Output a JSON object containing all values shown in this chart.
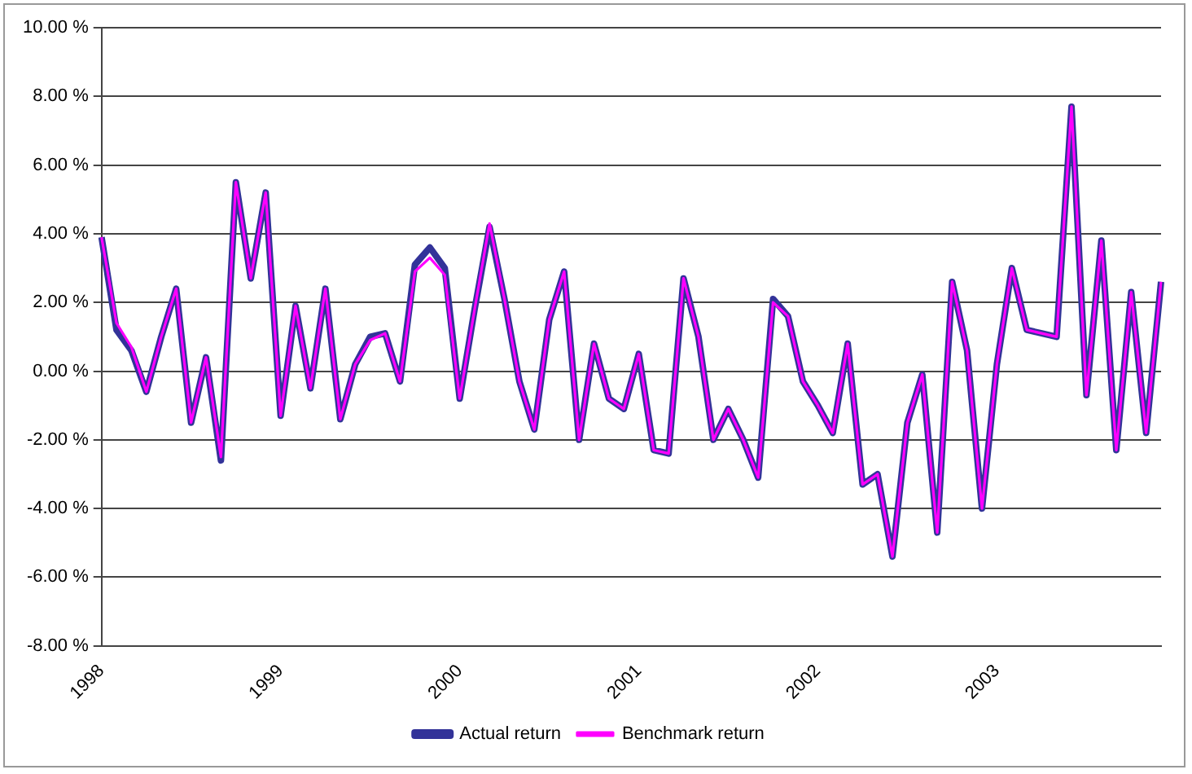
{
  "chart_data": {
    "type": "line",
    "categories": [
      "1998",
      null,
      null,
      null,
      null,
      null,
      null,
      null,
      null,
      null,
      null,
      null,
      "1999",
      null,
      null,
      null,
      null,
      null,
      null,
      null,
      null,
      null,
      null,
      null,
      "2000",
      null,
      null,
      null,
      null,
      null,
      null,
      null,
      null,
      null,
      null,
      null,
      "2001",
      null,
      null,
      null,
      null,
      null,
      null,
      null,
      null,
      null,
      null,
      null,
      "2002",
      null,
      null,
      null,
      null,
      null,
      null,
      null,
      null,
      null,
      null,
      null,
      "2003",
      null,
      null,
      null,
      null,
      null,
      null,
      null,
      null,
      null,
      null,
      null
    ],
    "series": [
      {
        "name": "Actual return",
        "color": "#333399",
        "values": [
          3.9,
          1.2,
          0.6,
          -0.6,
          1.0,
          2.4,
          -1.5,
          0.4,
          -2.6,
          5.5,
          2.7,
          5.2,
          -1.3,
          1.9,
          -0.5,
          2.4,
          -1.4,
          0.2,
          1.0,
          1.1,
          -0.3,
          3.1,
          3.6,
          3.0,
          -0.8,
          1.8,
          4.2,
          2.1,
          -0.3,
          -1.7,
          1.5,
          2.9,
          -2.0,
          0.8,
          -0.8,
          -1.1,
          0.5,
          -2.3,
          -2.4,
          2.7,
          1.0,
          -2.0,
          -1.1,
          -2.0,
          -3.1,
          2.1,
          1.6,
          -0.3,
          -1.0,
          -1.8,
          0.8,
          -3.3,
          -3.0,
          -5.4,
          -1.5,
          -0.1,
          -4.7,
          2.6,
          0.6,
          -4.0,
          0.2,
          3.0,
          1.2,
          1.1,
          1.0,
          7.7,
          -0.7,
          3.8,
          -2.3,
          2.3,
          -1.8,
          2.6
        ]
      },
      {
        "name": "Benchmark return",
        "color": "#ff00ff",
        "values": [
          3.9,
          1.4,
          0.7,
          -0.6,
          1.0,
          2.4,
          -1.5,
          0.4,
          -2.5,
          5.5,
          2.7,
          5.2,
          -1.3,
          1.9,
          -0.5,
          2.4,
          -1.4,
          0.2,
          0.9,
          1.1,
          -0.3,
          2.9,
          3.3,
          2.8,
          -0.8,
          1.8,
          4.3,
          2.1,
          -0.3,
          -1.7,
          1.5,
          2.9,
          -2.0,
          0.8,
          -0.8,
          -1.1,
          0.5,
          -2.3,
          -2.4,
          2.7,
          1.0,
          -2.0,
          -1.1,
          -2.0,
          -3.1,
          2.0,
          1.6,
          -0.3,
          -1.0,
          -1.8,
          0.8,
          -3.3,
          -3.0,
          -5.4,
          -1.5,
          -0.1,
          -4.7,
          2.6,
          0.6,
          -4.0,
          0.2,
          3.0,
          1.2,
          1.1,
          1.0,
          7.7,
          -0.7,
          3.8,
          -2.3,
          2.3,
          -1.8,
          2.6
        ]
      }
    ],
    "ylim": [
      -8,
      10
    ],
    "yticks": [
      {
        "value": -8,
        "label": "-8.00 %"
      },
      {
        "value": -6,
        "label": "-6.00 %"
      },
      {
        "value": -4,
        "label": "-4.00 %"
      },
      {
        "value": -2,
        "label": "-2.00 %"
      },
      {
        "value": 0,
        "label": "0.00 %"
      },
      {
        "value": 2,
        "label": "2.00 %"
      },
      {
        "value": 4,
        "label": "4.00 %"
      },
      {
        "value": 6,
        "label": "6.00 %"
      },
      {
        "value": 8,
        "label": "8.00 %"
      },
      {
        "value": 10,
        "label": "10.00 %"
      }
    ],
    "grid": "y",
    "legend": "bottom",
    "marker": "none",
    "line_style": "solid"
  }
}
